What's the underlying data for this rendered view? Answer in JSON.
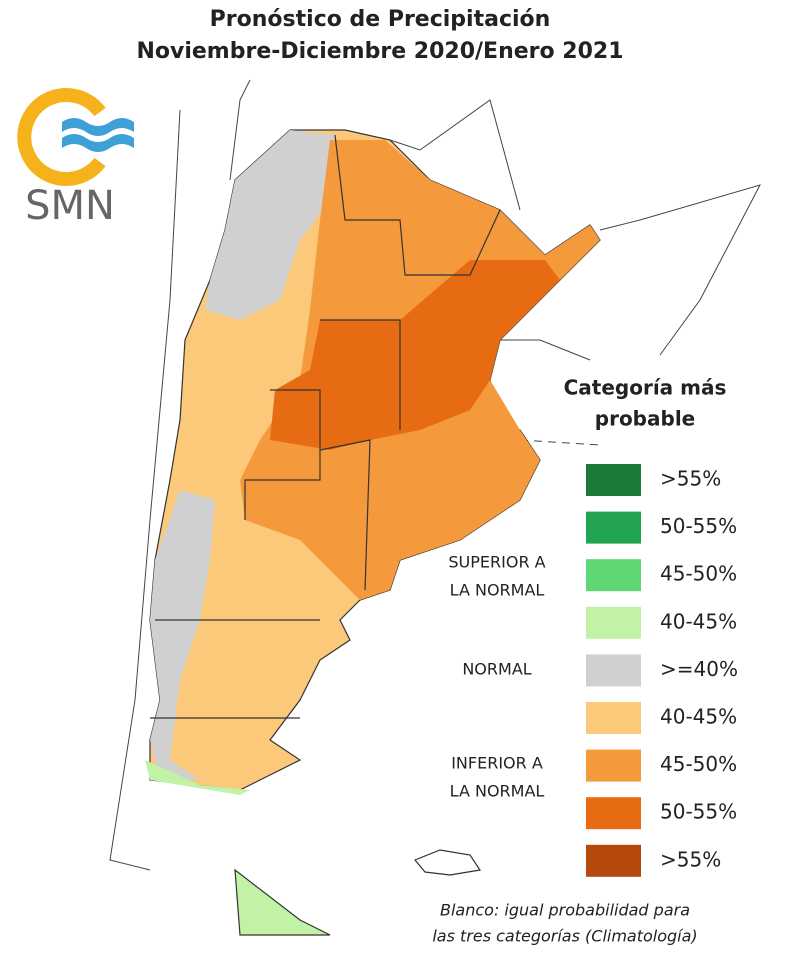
{
  "header": {
    "title": [
      "Pronóstico de Precipitación",
      "Noviembre-Diciembre 2020/Enero 2021"
    ]
  },
  "logo": {
    "text": "SMN"
  },
  "legend": {
    "title": [
      "Categoría más",
      "probable"
    ],
    "items": [
      {
        "label": ">55%",
        "color": "#1b7a36"
      },
      {
        "label": "50-55%",
        "color": "#22a453"
      },
      {
        "label": "45-50%",
        "color": "#5fd574"
      },
      {
        "label": "40-45%",
        "color": "#c2f2a6"
      },
      {
        "label": ">=40%",
        "color": "#d0d0d0"
      },
      {
        "label": "40-45%",
        "color": "#fcc97b"
      },
      {
        "label": "45-50%",
        "color": "#f49a3c"
      },
      {
        "label": "50-55%",
        "color": "#e66b12"
      },
      {
        "label": ">55%",
        "color": "#b5490b"
      }
    ],
    "groups": [
      {
        "label": [
          "SUPERIOR A",
          "LA NORMAL"
        ]
      },
      {
        "label": [
          "NORMAL"
        ]
      },
      {
        "label": [
          "INFERIOR A",
          "LA NORMAL"
        ]
      }
    ]
  },
  "note": [
    "Blanco: igual probabilidad para",
    "las tres categorías (Climatología)"
  ]
}
